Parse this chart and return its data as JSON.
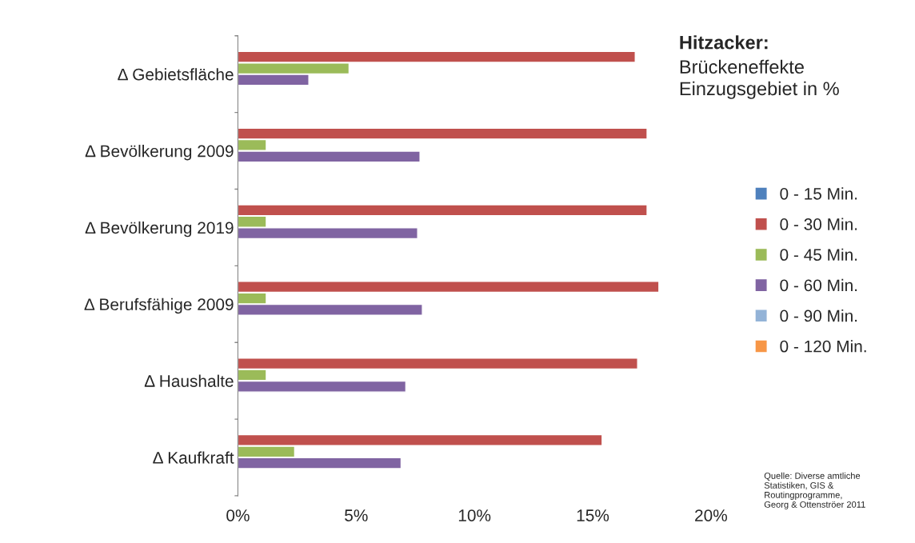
{
  "chart_data": {
    "type": "bar",
    "orientation": "horizontal",
    "title": "Hitzacker:",
    "subtitle": "Brückeneffekte\nEinzugsgebiet in %",
    "categories": [
      "Δ Gebietsfläche",
      "Δ Bevölkerung 2009",
      "Δ Bevölkerung 2019",
      "Δ Berufsfähige 2009",
      "Δ Haushalte",
      "Δ Kaufkraft"
    ],
    "series": [
      {
        "name": "0 - 15 Min.",
        "color": "#4f81bd",
        "values": [
          null,
          null,
          null,
          null,
          null,
          null
        ]
      },
      {
        "name": "0 - 30 Min.",
        "color": "#c0504d",
        "values": [
          16.8,
          17.3,
          17.3,
          17.8,
          16.9,
          15.4
        ]
      },
      {
        "name": "0 - 45 Min.",
        "color": "#9bbb59",
        "values": [
          4.7,
          1.2,
          1.2,
          1.2,
          1.2,
          2.4
        ]
      },
      {
        "name": "0 - 60 Min.",
        "color": "#8064a2",
        "values": [
          3.0,
          7.7,
          7.6,
          7.8,
          7.1,
          6.9
        ]
      },
      {
        "name": "0 - 90 Min.",
        "color": "#93b3d7",
        "values": [
          null,
          null,
          null,
          null,
          null,
          null
        ]
      },
      {
        "name": "0 - 120 Min.",
        "color": "#f79646",
        "values": [
          null,
          null,
          null,
          null,
          null,
          null
        ]
      }
    ],
    "xlim": [
      0,
      20
    ],
    "xticks": [
      {
        "value": 0,
        "label": "0%"
      },
      {
        "value": 5,
        "label": "5%"
      },
      {
        "value": 10,
        "label": "10%"
      },
      {
        "value": 15,
        "label": "15%"
      },
      {
        "value": 20,
        "label": "20%"
      }
    ],
    "grid": false,
    "legend": "right",
    "annotations": [
      "Quelle: Diverse amtliche\nStatistiken, GIS &\nRoutingprogramme,\nGeorg & Ottenströer 2011"
    ]
  }
}
